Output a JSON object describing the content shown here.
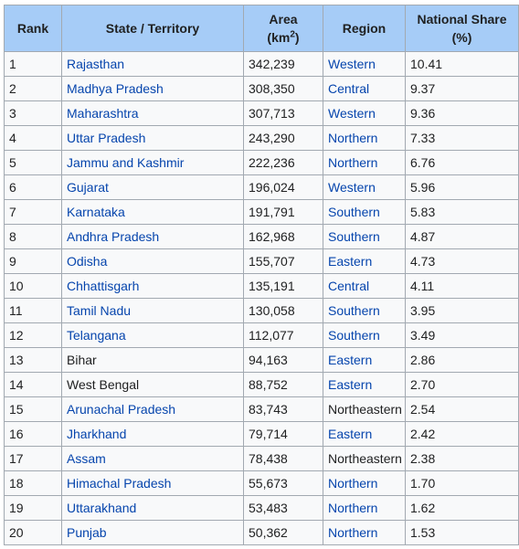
{
  "table": {
    "headers": {
      "rank": "Rank",
      "state": "State / Territory",
      "area_line1": "Area",
      "area_unit_pre": "(km",
      "area_unit_sup": "2",
      "area_unit_post": ")",
      "region": "Region",
      "share_line1": "National Share",
      "share_line2": "(%)"
    },
    "rows": [
      {
        "rank": "1",
        "state": "Rajasthan",
        "state_linked": true,
        "area": "342,239",
        "region": "Western",
        "share": "10.41"
      },
      {
        "rank": "2",
        "state": "Madhya Pradesh",
        "state_linked": true,
        "area": "308,350",
        "region": "Central",
        "share": "9.37"
      },
      {
        "rank": "3",
        "state": "Maharashtra",
        "state_linked": true,
        "area": "307,713",
        "region": "Western",
        "share": "9.36"
      },
      {
        "rank": "4",
        "state": "Uttar Pradesh",
        "state_linked": true,
        "area": "243,290",
        "region": "Northern",
        "share": "7.33"
      },
      {
        "rank": "5",
        "state": "Jammu and Kashmir",
        "state_linked": true,
        "area": "222,236",
        "region": "Northern",
        "share": "6.76"
      },
      {
        "rank": "6",
        "state": "Gujarat",
        "state_linked": true,
        "area": "196,024",
        "region": "Western",
        "share": "5.96"
      },
      {
        "rank": "7",
        "state": "Karnataka",
        "state_linked": true,
        "area": "191,791",
        "region": "Southern",
        "share": "5.83"
      },
      {
        "rank": "8",
        "state": "Andhra Pradesh",
        "state_linked": true,
        "area": "162,968",
        "region": "Southern",
        "share": "4.87"
      },
      {
        "rank": "9",
        "state": "Odisha",
        "state_linked": true,
        "area": "155,707",
        "region": "Eastern",
        "share": "4.73"
      },
      {
        "rank": "10",
        "state": "Chhattisgarh",
        "state_linked": true,
        "area": "135,191",
        "region": "Central",
        "share": "4.11"
      },
      {
        "rank": "11",
        "state": "Tamil Nadu",
        "state_linked": true,
        "area": "130,058",
        "region": "Southern",
        "share": "3.95"
      },
      {
        "rank": "12",
        "state": "Telangana",
        "state_linked": true,
        "area": "112,077",
        "region": "Southern",
        "share": "3.49"
      },
      {
        "rank": "13",
        "state": "Bihar",
        "state_linked": false,
        "area": "94,163",
        "region": "Eastern",
        "share": "2.86"
      },
      {
        "rank": "14",
        "state": "West Bengal",
        "state_linked": false,
        "area": "88,752",
        "region": "Eastern",
        "share": "2.70"
      },
      {
        "rank": "15",
        "state": "Arunachal Pradesh",
        "state_linked": true,
        "area": "83,743",
        "region": "Northeastern",
        "region_linked": false,
        "share": "2.54"
      },
      {
        "rank": "16",
        "state": "Jharkhand",
        "state_linked": true,
        "area": "79,714",
        "region": "Eastern",
        "share": "2.42"
      },
      {
        "rank": "17",
        "state": "Assam",
        "state_linked": true,
        "area": "78,438",
        "region": "Northeastern",
        "region_linked": false,
        "share": "2.38"
      },
      {
        "rank": "18",
        "state": "Himachal Pradesh",
        "state_linked": true,
        "area": "55,673",
        "region": "Northern",
        "share": "1.70"
      },
      {
        "rank": "19",
        "state": "Uttarakhand",
        "state_linked": true,
        "area": "53,483",
        "region": "Northern",
        "share": "1.62"
      },
      {
        "rank": "20",
        "state": "Punjab",
        "state_linked": true,
        "area": "50,362",
        "region": "Northern",
        "share": "1.53"
      }
    ]
  },
  "colors": {
    "header_bg": "#a6ccf7",
    "cell_bg": "#f8f9fa",
    "border": "#a2a9b1",
    "link": "#0645ad",
    "text": "#202122"
  }
}
